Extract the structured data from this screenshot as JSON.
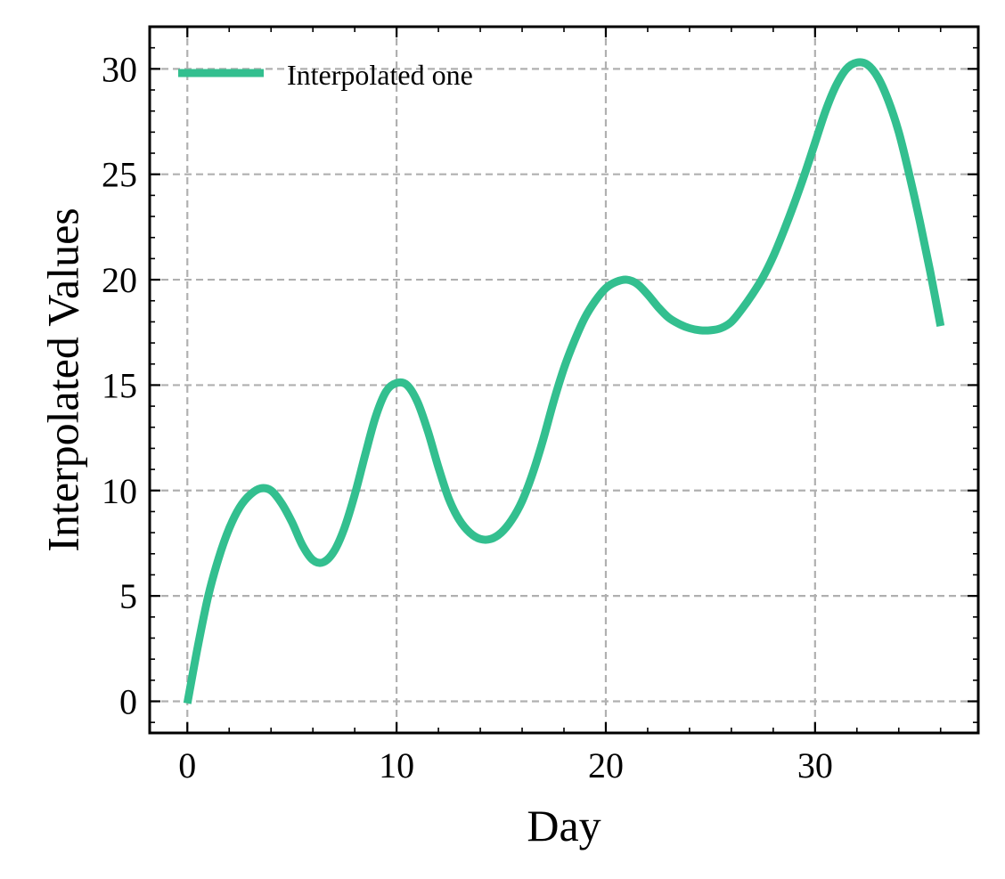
{
  "chart_data": {
    "type": "line",
    "xlabel": "Day",
    "ylabel": "Interpolated Values",
    "xlim": [
      -1.8,
      37.8
    ],
    "ylim": [
      -1.5,
      32
    ],
    "x_ticks": [
      0,
      10,
      20,
      30
    ],
    "y_ticks": [
      0,
      5,
      10,
      15,
      20,
      25,
      30
    ],
    "x_minor_step": 2,
    "y_minor_step": 1,
    "grid": true,
    "grid_style": "dashed",
    "legend_position": "top-left",
    "series": [
      {
        "name": "Interpolated one",
        "color": "#33bf8f",
        "x": [
          0,
          0.5,
          1,
          1.5,
          2,
          2.5,
          3,
          3.5,
          4,
          4.5,
          5,
          5.5,
          6,
          6.5,
          7,
          7.5,
          8,
          8.5,
          9,
          9.5,
          10,
          10.5,
          11,
          11.5,
          12,
          12.5,
          13,
          13.5,
          14,
          14.5,
          15,
          15.5,
          16,
          16.5,
          17,
          17.5,
          18,
          18.5,
          19,
          19.5,
          20,
          20.5,
          21,
          21.5,
          22,
          22.5,
          23,
          23.5,
          24,
          24.5,
          25,
          25.5,
          26,
          26.5,
          27,
          27.5,
          28,
          28.5,
          29,
          29.5,
          30,
          30.5,
          31,
          31.5,
          32,
          32.5,
          33,
          33.5,
          34,
          34.5,
          35,
          35.5,
          36
        ],
        "y": [
          -0.1,
          2.6,
          5.0,
          6.8,
          8.2,
          9.2,
          9.8,
          10.1,
          10.0,
          9.4,
          8.5,
          7.4,
          6.7,
          6.6,
          7.1,
          8.2,
          9.8,
          11.7,
          13.5,
          14.7,
          15.1,
          15.0,
          14.2,
          12.8,
          11.1,
          9.6,
          8.6,
          8.0,
          7.7,
          7.7,
          8.0,
          8.6,
          9.5,
          10.8,
          12.4,
          14.2,
          15.8,
          17.1,
          18.2,
          19.0,
          19.6,
          19.9,
          20.0,
          19.8,
          19.3,
          18.7,
          18.2,
          17.9,
          17.7,
          17.6,
          17.6,
          17.7,
          18.0,
          18.6,
          19.3,
          20.1,
          21.1,
          22.3,
          23.6,
          25.0,
          26.5,
          28.0,
          29.2,
          30.0,
          30.3,
          30.2,
          29.6,
          28.5,
          27.0,
          25.0,
          22.8,
          20.4,
          17.8
        ]
      }
    ]
  }
}
